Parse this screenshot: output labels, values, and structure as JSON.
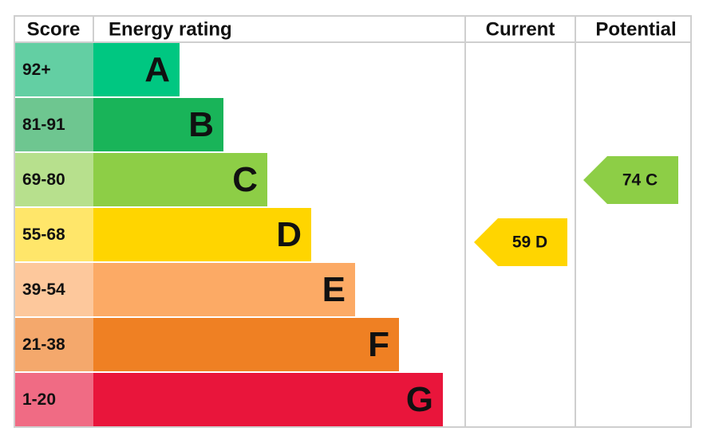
{
  "header": [
    "Score",
    "Energy rating",
    "Current",
    "Potential"
  ],
  "bands": [
    {
      "score": "92+",
      "letter": "A",
      "color": "#00c781",
      "score_color": "#63cfa3"
    },
    {
      "score": "81-91",
      "letter": "B",
      "color": "#19b459",
      "score_color": "#6ec690"
    },
    {
      "score": "69-80",
      "letter": "C",
      "color": "#8dce46",
      "score_color": "#b7e08d"
    },
    {
      "score": "55-68",
      "letter": "D",
      "color": "#ffd500",
      "score_color": "#ffe66a"
    },
    {
      "score": "39-54",
      "letter": "E",
      "color": "#fcaa65",
      "score_color": "#fdc89c"
    },
    {
      "score": "21-38",
      "letter": "F",
      "color": "#ef8023",
      "score_color": "#f4a86c"
    },
    {
      "score": "1-20",
      "letter": "G",
      "color": "#e9153b",
      "score_color": "#f06b84"
    }
  ],
  "current": {
    "label": "59 D",
    "color": "#ffd500"
  },
  "potential": {
    "label": "74 C",
    "color": "#8dce46"
  }
}
